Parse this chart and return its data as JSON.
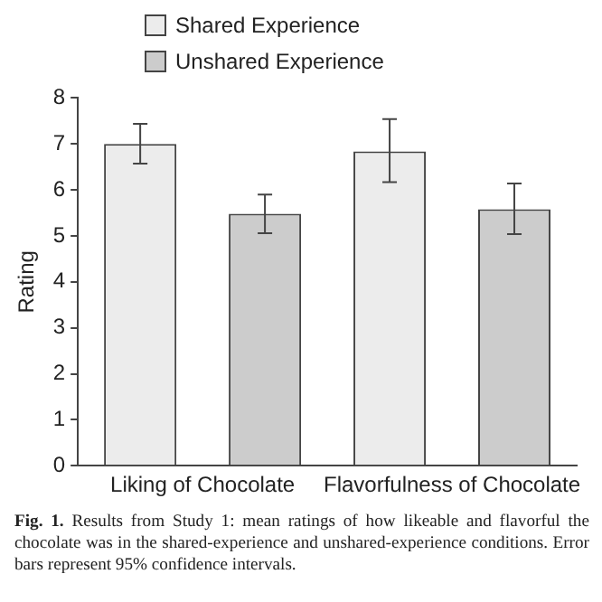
{
  "chart_data": {
    "type": "bar",
    "categories": [
      "Liking of Chocolate",
      "Flavorfulness of Chocolate"
    ],
    "series": [
      {
        "name": "Shared Experience",
        "color": "#ececec",
        "values": [
          7.0,
          6.84
        ],
        "errors": [
          [
            6.57,
            7.44
          ],
          [
            6.17,
            7.54
          ]
        ]
      },
      {
        "name": "Unshared Experience",
        "color": "#cccccc",
        "values": [
          5.48,
          5.58
        ],
        "errors": [
          [
            5.06,
            5.9
          ],
          [
            5.04,
            6.14
          ]
        ]
      }
    ],
    "ylabel": "Rating",
    "ylim": [
      0,
      8
    ],
    "yticks": [
      0,
      1,
      2,
      3,
      4,
      5,
      6,
      7,
      8
    ],
    "grid": false,
    "legend": "top",
    "annotations": [
      "Fig. 1.",
      "Results from Study 1: mean ratings of how likeable and flavorful the chocolate was in the shared-experience and unshared-experience conditions. Error bars represent 95% confidence intervals."
    ]
  }
}
